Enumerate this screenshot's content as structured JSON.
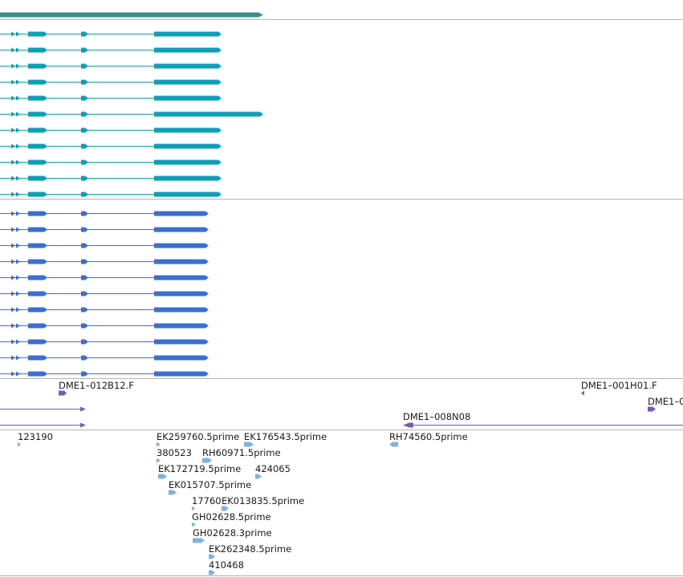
{
  "colors": {
    "gene": "#3a8f8c",
    "transcript_group_a": "#0e9eb8",
    "transcript_group_b": "#3a6fce",
    "clone": "#7a5aaa",
    "est": "#7fb3de",
    "divider": "#b4b4b4",
    "label": "#1a1a1a"
  },
  "tracks": {
    "clones": [
      {
        "label": "DME1–012B12.F",
        "strand": "+"
      },
      {
        "label": "DME1–001H01.F",
        "strand": "-"
      },
      {
        "label": "DME1–0",
        "strand": "+"
      },
      {
        "label": "",
        "strand": "+"
      },
      {
        "label": "",
        "strand": "+"
      },
      {
        "label": "DME1–008N08",
        "strand": "-"
      }
    ],
    "ests": [
      {
        "label": "123190"
      },
      {
        "label": "EK259760.5prime"
      },
      {
        "label": "EK176543.5prime"
      },
      {
        "label": "RH74560.5prime"
      },
      {
        "label": "380523"
      },
      {
        "label": "RH60971.5prime"
      },
      {
        "label": "EK172719.5prime"
      },
      {
        "label": "424065"
      },
      {
        "label": "EK015707.5prime"
      },
      {
        "label": "17760"
      },
      {
        "label": "EK013835.5prime"
      },
      {
        "label": "GH02628.5prime"
      },
      {
        "label": "GH02628.3prime"
      },
      {
        "label": "EK262348.5prime"
      },
      {
        "label": "410468"
      }
    ]
  }
}
